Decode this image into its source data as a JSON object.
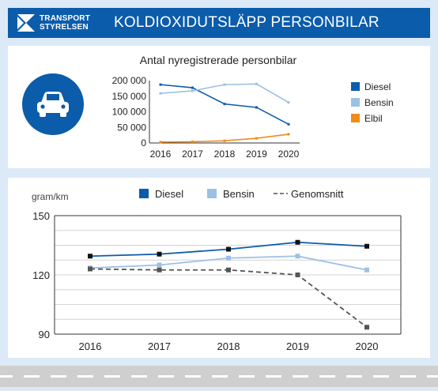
{
  "header": {
    "logo_line1": "TRANSPORT",
    "logo_line2": "STYRELSEN",
    "title": "KOLDIOXIDUTSLÄPP PERSONBILAR",
    "bg_color": "#0b5cab"
  },
  "icons": {
    "logo": "transportstyrelsen-logo-icon",
    "car": "car-icon"
  },
  "chart_data": [
    {
      "type": "line",
      "title": "Antal nyregistrerade personbilar",
      "x": [
        "2016",
        "2017",
        "2018",
        "2019",
        "2020"
      ],
      "ylim": [
        0,
        200000
      ],
      "yticks": [
        "0",
        "50 000",
        "100 000",
        "150 000",
        "200 000"
      ],
      "legend_position": "right",
      "grid": false,
      "series": [
        {
          "name": "Diesel",
          "color": "#0b5cab",
          "values": [
            187000,
            177000,
            125000,
            114000,
            60000
          ]
        },
        {
          "name": "Bensin",
          "color": "#9cc0e6",
          "values": [
            159000,
            167000,
            187000,
            189000,
            130000
          ]
        },
        {
          "name": "Elbil",
          "color": "#f08c1a",
          "values": [
            3000,
            4000,
            7000,
            15000,
            28000
          ]
        }
      ]
    },
    {
      "type": "line",
      "ylabel": "gram/km",
      "x": [
        "2016",
        "2017",
        "2018",
        "2019",
        "2020"
      ],
      "ylim": [
        90,
        150
      ],
      "yticks": [
        "90",
        "120",
        "150"
      ],
      "legend_position": "top",
      "grid": true,
      "series": [
        {
          "name": "Diesel",
          "color": "#0b5cab",
          "values": [
            129.5,
            130.5,
            133,
            136.5,
            134.5
          ]
        },
        {
          "name": "Bensin",
          "color": "#9cc0e6",
          "values": [
            123.5,
            125,
            128.5,
            129.5,
            122.5
          ]
        },
        {
          "name": "Genomsnitt",
          "color": "#555555",
          "dashed": true,
          "values": [
            123,
            122.5,
            122.5,
            120,
            93.5
          ]
        }
      ]
    }
  ]
}
